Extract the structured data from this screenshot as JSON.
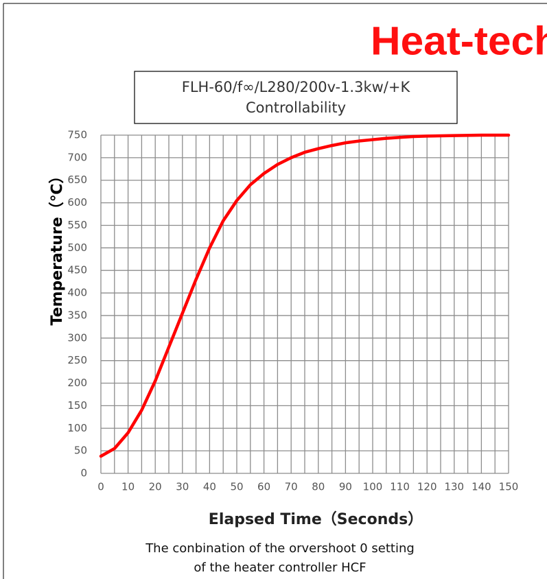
{
  "brand": "Heat-tech",
  "chart_data": {
    "type": "line",
    "title": [
      "FLH-60/f∞/L280/200v-1.3kw/+K",
      "Controllability"
    ],
    "x_label": "Elapsed Time（Seconds）",
    "y_label": "Temperature（℃）",
    "caption": [
      "The conbination of the orvershoot 0 setting",
      "of the heater controller HCF"
    ],
    "x": [
      0,
      5,
      10,
      15,
      20,
      25,
      30,
      35,
      40,
      45,
      50,
      55,
      60,
      65,
      70,
      75,
      80,
      85,
      90,
      95,
      100,
      105,
      110,
      115,
      120,
      130,
      140,
      150
    ],
    "series": [
      {
        "name": "Temperature",
        "color": "#ff0000",
        "values": [
          38,
          55,
          90,
          140,
          205,
          280,
          355,
          430,
          500,
          560,
          605,
          640,
          665,
          685,
          700,
          712,
          720,
          727,
          733,
          737,
          740,
          743,
          745,
          747,
          748,
          749,
          750,
          750
        ]
      }
    ],
    "xlim": [
      0,
      150
    ],
    "xticks": [
      0,
      10,
      20,
      30,
      40,
      50,
      60,
      70,
      80,
      90,
      100,
      110,
      120,
      130,
      140,
      150
    ],
    "x_minor_ticks": [
      5,
      15,
      25,
      35,
      45,
      55,
      65,
      75,
      85,
      95,
      105,
      115,
      125,
      135,
      145
    ],
    "ylim": [
      0,
      750
    ],
    "yticks": [
      0,
      50,
      100,
      150,
      200,
      250,
      300,
      350,
      400,
      450,
      500,
      550,
      600,
      650,
      700,
      750
    ],
    "grid": true
  }
}
